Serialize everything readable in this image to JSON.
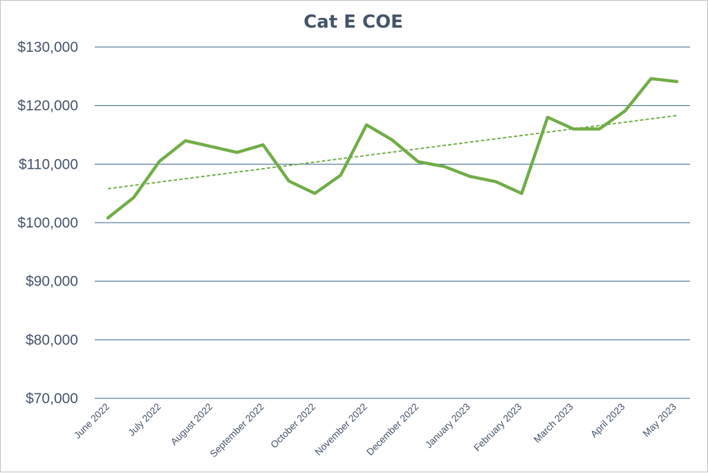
{
  "chart_data": {
    "type": "line",
    "title": "Cat E COE",
    "xlabel": "",
    "ylabel": "",
    "ylim": [
      70000,
      130000
    ],
    "yticks": [
      70000,
      80000,
      90000,
      100000,
      110000,
      120000,
      130000
    ],
    "ytick_labels": [
      "$70,000",
      "$80,000",
      "$90,000",
      "$100,000",
      "$110,000",
      "$120,000",
      "$130,000"
    ],
    "xtick_labels": [
      "June 2022",
      "July 2022",
      "August 2022",
      "September 2022",
      "October 2022",
      "November 2022",
      "December 2022",
      "January 2023",
      "February 2023",
      "March 2023",
      "April 2023",
      "May 2023"
    ],
    "grid": true,
    "legend": "none",
    "series": [
      {
        "style": "solid",
        "color": "#70ad47",
        "values": [
          100800,
          104300,
          110500,
          114000,
          113000,
          112000,
          113300,
          107100,
          105000,
          108100,
          116700,
          114100,
          110400,
          109600,
          107900,
          107000,
          105000,
          118000,
          116000,
          116000,
          119100,
          124600,
          124100
        ]
      },
      {
        "style": "dashed-trendline",
        "color": "#70ad47",
        "values": [
          105800,
          118300
        ]
      }
    ]
  },
  "colors": {
    "line": "#70ad47",
    "grid": "#2e5f8a",
    "text": "#44546a",
    "border": "#bfbfbf"
  }
}
